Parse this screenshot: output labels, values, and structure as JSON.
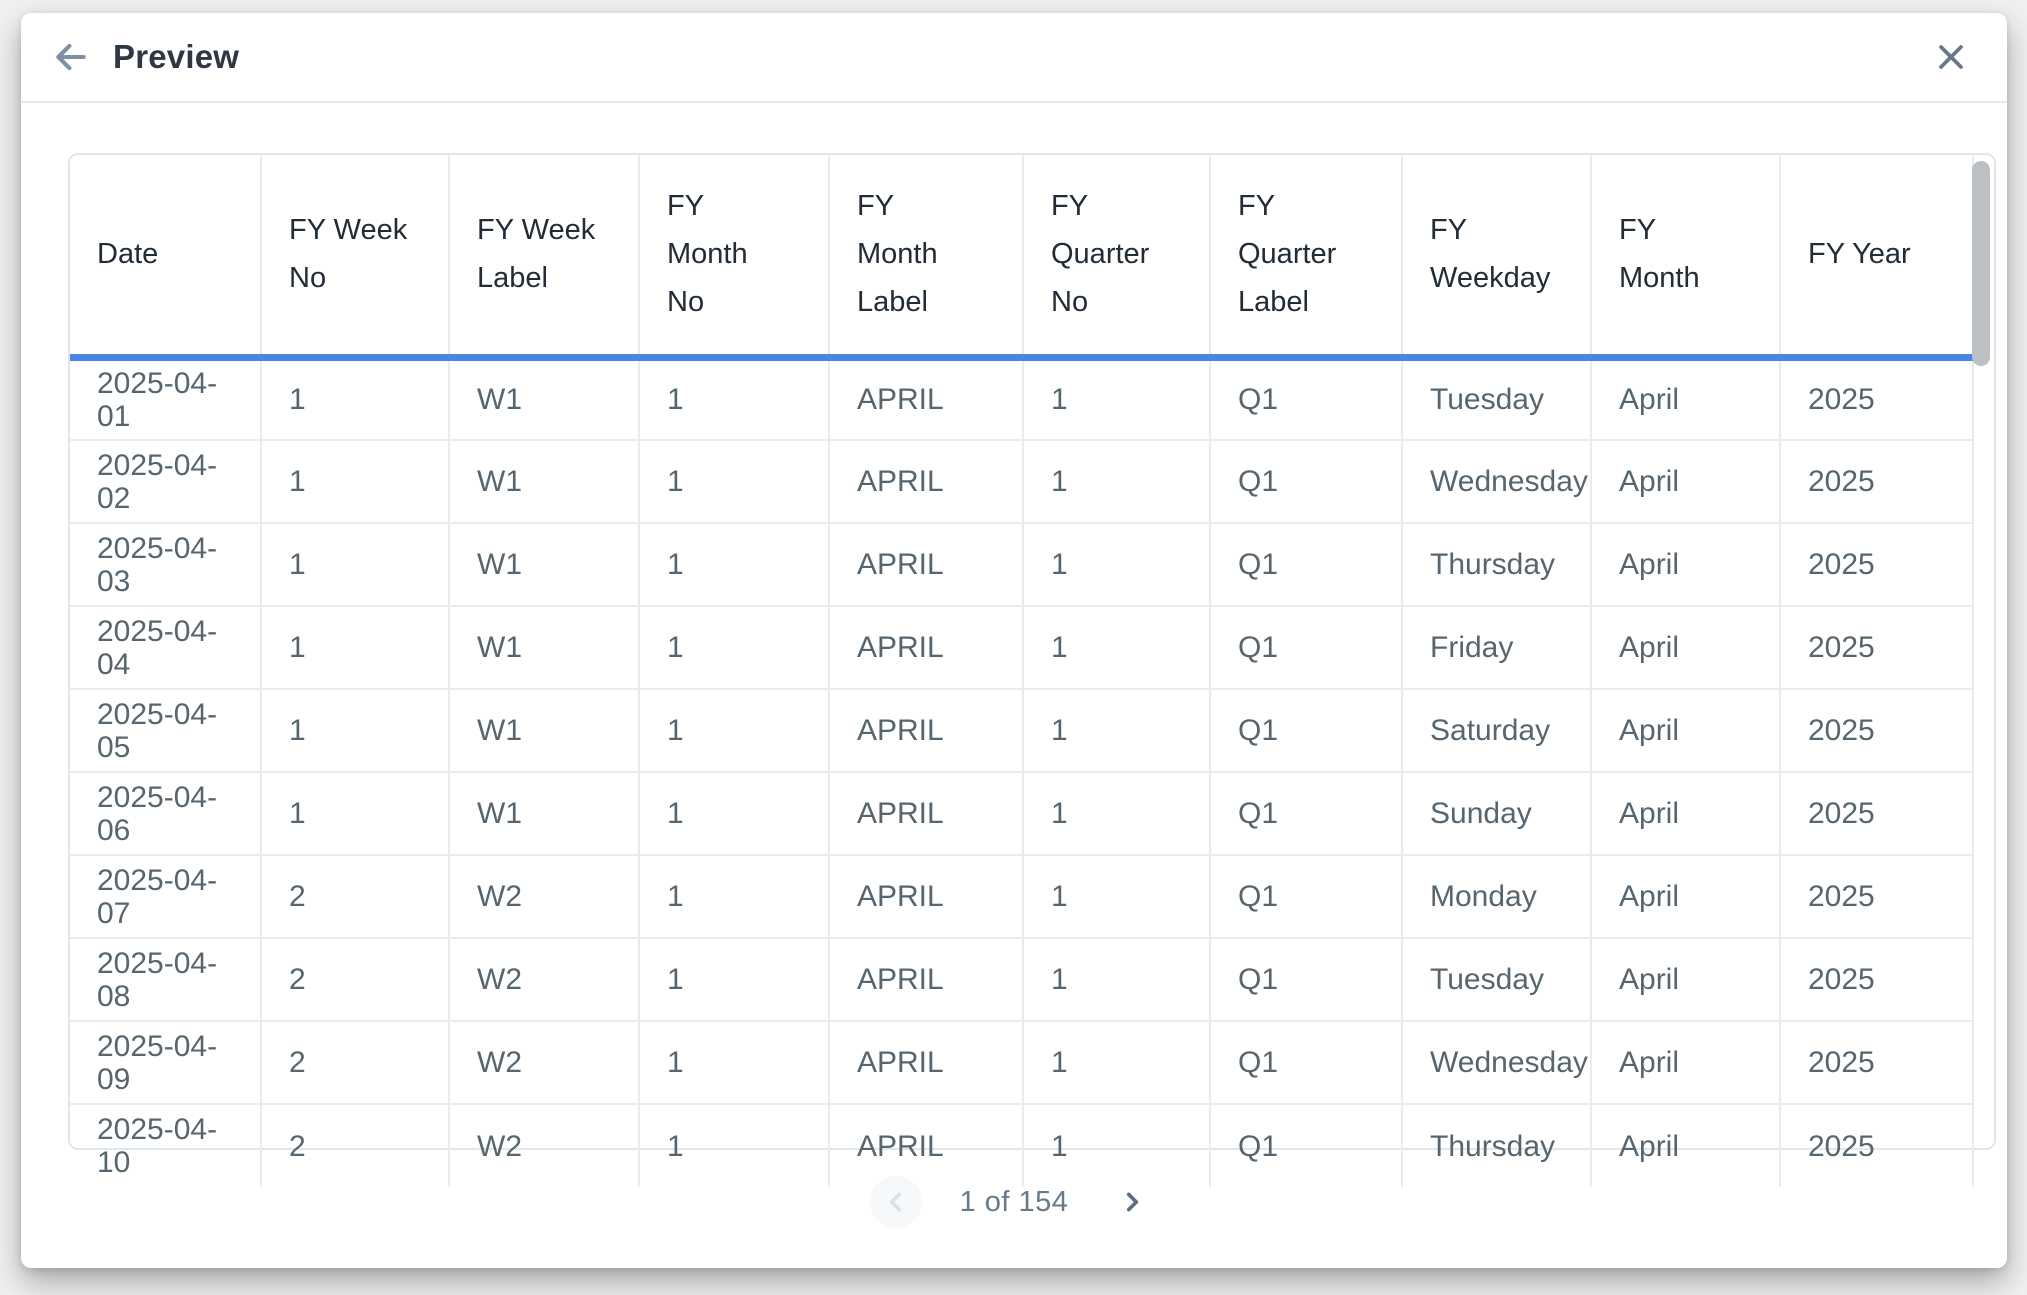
{
  "header": {
    "title": "Preview",
    "back_icon": "arrow-left-icon",
    "close_icon": "close-icon"
  },
  "table": {
    "columns": [
      "Date",
      "FY Week No",
      "FY Week Label",
      "FY Month No",
      "FY Month Label",
      "FY Quarter No",
      "FY Quarter Label",
      "FY Weekday",
      "FY Month",
      "FY Year"
    ],
    "rows": [
      [
        "2025-04-01",
        "1",
        "W1",
        "1",
        "APRIL",
        "1",
        "Q1",
        "Tuesday",
        "April",
        "2025"
      ],
      [
        "2025-04-02",
        "1",
        "W1",
        "1",
        "APRIL",
        "1",
        "Q1",
        "Wednesday",
        "April",
        "2025"
      ],
      [
        "2025-04-03",
        "1",
        "W1",
        "1",
        "APRIL",
        "1",
        "Q1",
        "Thursday",
        "April",
        "2025"
      ],
      [
        "2025-04-04",
        "1",
        "W1",
        "1",
        "APRIL",
        "1",
        "Q1",
        "Friday",
        "April",
        "2025"
      ],
      [
        "2025-04-05",
        "1",
        "W1",
        "1",
        "APRIL",
        "1",
        "Q1",
        "Saturday",
        "April",
        "2025"
      ],
      [
        "2025-04-06",
        "1",
        "W1",
        "1",
        "APRIL",
        "1",
        "Q1",
        "Sunday",
        "April",
        "2025"
      ],
      [
        "2025-04-07",
        "2",
        "W2",
        "1",
        "APRIL",
        "1",
        "Q1",
        "Monday",
        "April",
        "2025"
      ],
      [
        "2025-04-08",
        "2",
        "W2",
        "1",
        "APRIL",
        "1",
        "Q1",
        "Tuesday",
        "April",
        "2025"
      ],
      [
        "2025-04-09",
        "2",
        "W2",
        "1",
        "APRIL",
        "1",
        "Q1",
        "Wednesday",
        "April",
        "2025"
      ],
      [
        "2025-04-10",
        "2",
        "W2",
        "1",
        "APRIL",
        "1",
        "Q1",
        "Thursday",
        "April",
        "2025"
      ]
    ]
  },
  "pagination": {
    "current_page": "1",
    "total_pages": "154",
    "label": "1 of 154",
    "prev_icon": "chevron-left-icon",
    "next_icon": "chevron-right-icon"
  },
  "colors": {
    "accent_blue": "#4a85e6",
    "cell_text": "#57656f",
    "header_text": "#222c36"
  }
}
